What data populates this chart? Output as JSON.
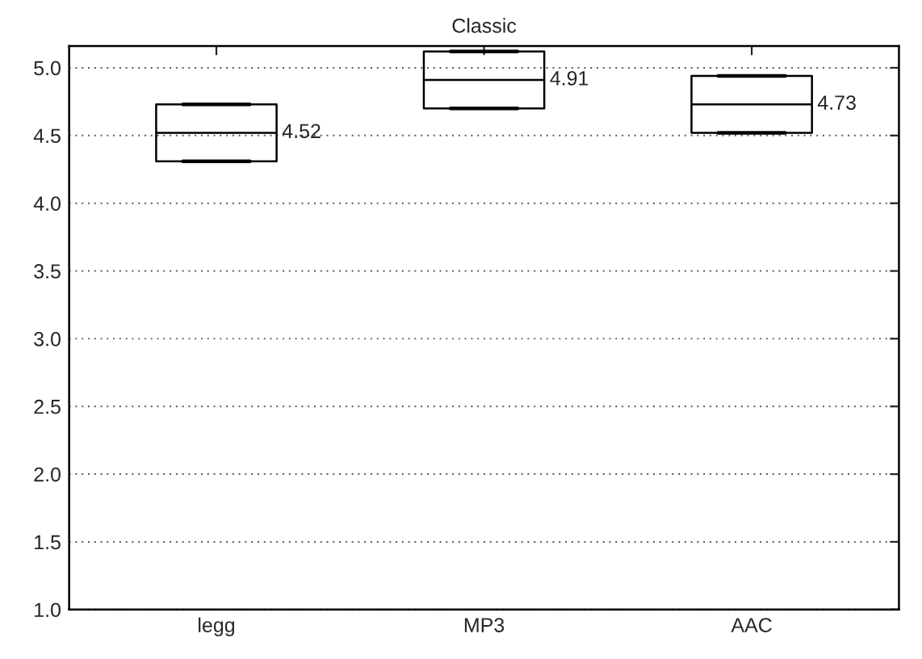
{
  "chart_data": {
    "type": "box",
    "title": "Classic",
    "categories": [
      "legg",
      "MP3",
      "AAC"
    ],
    "boxes": [
      {
        "low": 4.31,
        "q1": 4.31,
        "median": 4.52,
        "q3": 4.73,
        "high": 4.73
      },
      {
        "low": 4.7,
        "q1": 4.7,
        "median": 4.91,
        "q3": 5.12,
        "high": 5.12
      },
      {
        "low": 4.52,
        "q1": 4.52,
        "median": 4.73,
        "q3": 4.94,
        "high": 4.94
      }
    ],
    "value_labels": [
      "4.52",
      "4.91",
      "4.73"
    ],
    "ylim": [
      1.0,
      5.16
    ],
    "yticks": [
      {
        "value": 1.0,
        "label": "1.0"
      },
      {
        "value": 1.5,
        "label": "1.5"
      },
      {
        "value": 2.0,
        "label": "2.0"
      },
      {
        "value": 2.5,
        "label": "2.5"
      },
      {
        "value": 3.0,
        "label": "3.0"
      },
      {
        "value": 3.5,
        "label": "3.5"
      },
      {
        "value": 4.0,
        "label": "4.0"
      },
      {
        "value": 4.5,
        "label": "4.5"
      },
      {
        "value": 5.0,
        "label": "5.0"
      }
    ],
    "grid": "y",
    "color": "#000000"
  }
}
